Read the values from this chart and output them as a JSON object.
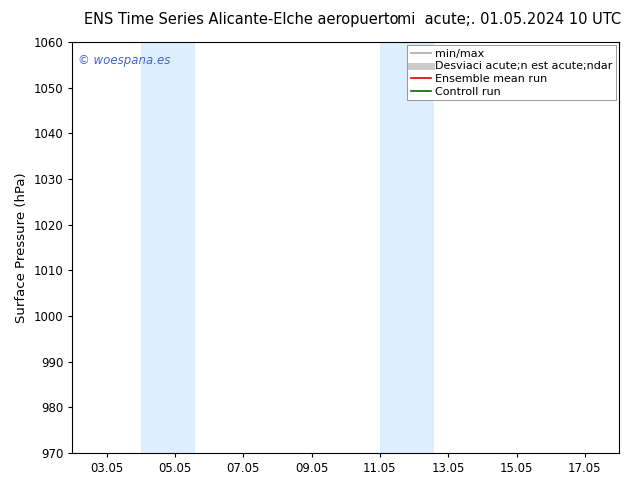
{
  "title": "ENS Time Series Alicante-Elche aeropuerto     mi  acute;. 01.05.2024 10 UTC",
  "title_part1": "ENS Time Series Alicante-Elche aeropuerto",
  "title_part2": "mi  acute;. 01.05.2024 10 UTC",
  "ylabel": "Surface Pressure (hPa)",
  "ylim": [
    970,
    1060
  ],
  "yticks": [
    970,
    980,
    990,
    1000,
    1010,
    1020,
    1030,
    1040,
    1050,
    1060
  ],
  "xlim": [
    2,
    18
  ],
  "xtick_labels": [
    "03.05",
    "05.05",
    "07.05",
    "09.05",
    "11.05",
    "13.05",
    "15.05",
    "17.05"
  ],
  "xtick_positions": [
    3,
    5,
    7,
    9,
    11,
    13,
    15,
    17
  ],
  "shaded_bands": [
    {
      "xstart": 4.0,
      "xend": 5.6
    },
    {
      "xstart": 11.0,
      "xend": 12.6
    }
  ],
  "shade_color": "#ddeeff",
  "watermark_text": "© woespana.es",
  "watermark_color": "#4466cc",
  "legend_label1": "min/max",
  "legend_label2": "Desviaci acute;n est acute;ndar",
  "legend_label3": "Ensemble mean run",
  "legend_label4": "Controll run",
  "color_minmax": "#aaaaaa",
  "color_std": "#cccccc",
  "color_ensemble": "#dd0000",
  "color_control": "#006600",
  "bg_color": "#ffffff",
  "font_size_title": 10.5,
  "font_size_axis": 9.5,
  "font_size_tick": 8.5,
  "font_size_legend": 8.0,
  "font_size_watermark": 8.5
}
